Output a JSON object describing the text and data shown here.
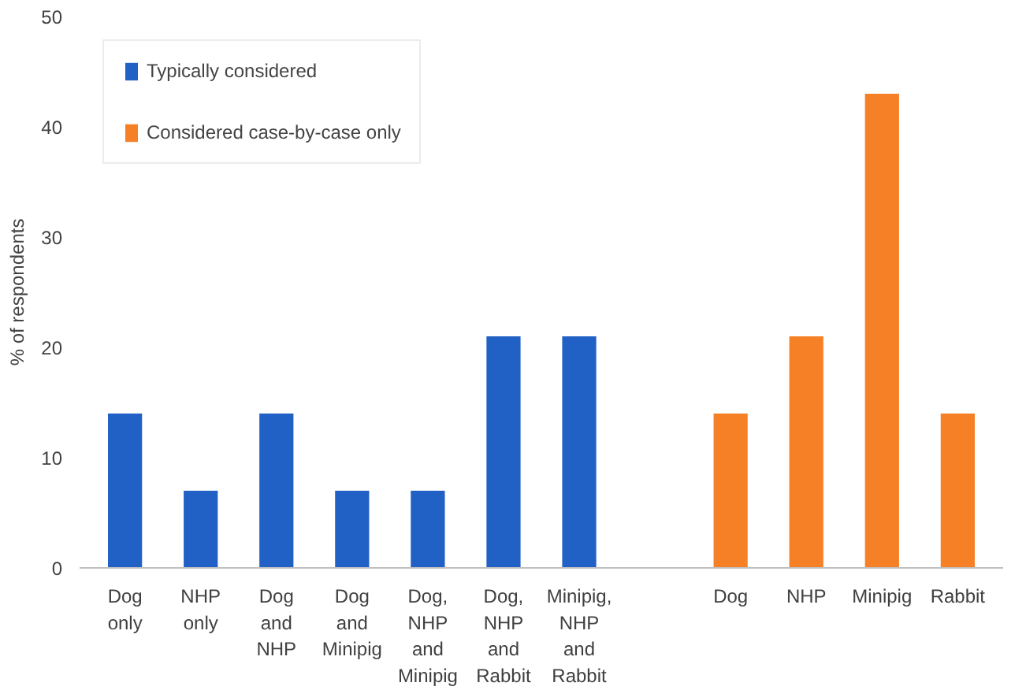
{
  "chart_data": {
    "type": "bar",
    "ylabel": "% of respondents",
    "categories": [
      "Dog\nonly",
      "NHP\nonly",
      "Dog\nand\nNHP",
      "Dog\nand\nMinipig",
      "Dog,\nNHP\nand\nMinipig",
      "Dog,\nNHP\nand\nRabbit",
      "Minipig,\nNHP\nand\nRabbit",
      null,
      "Dog",
      "NHP",
      "Minipig",
      "Rabbit"
    ],
    "series": [
      {
        "name": "Typically considered",
        "color": "#2160c4",
        "values": [
          14,
          7,
          14,
          7,
          7,
          21,
          21,
          null,
          null,
          null,
          null,
          null
        ]
      },
      {
        "name": "Considered case-by-case only",
        "color": "#f58025",
        "values": [
          null,
          null,
          null,
          null,
          null,
          null,
          null,
          null,
          14,
          21,
          43,
          14
        ]
      }
    ],
    "ylim": [
      0,
      50
    ],
    "yticks": [
      0,
      10,
      20,
      30,
      40,
      50
    ],
    "grid": false,
    "legend": "top left"
  }
}
